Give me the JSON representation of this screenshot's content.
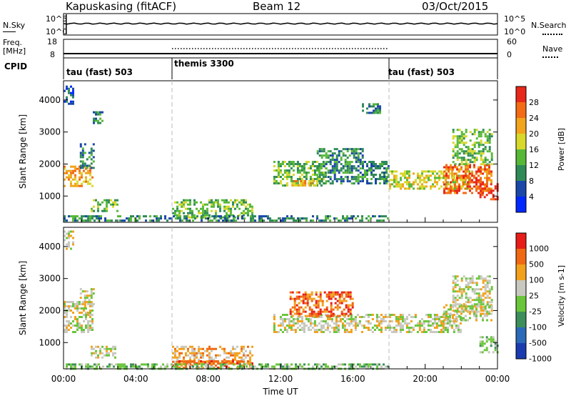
{
  "header": {
    "station": "Kapuskasing (fitACF)",
    "beam": "Beam 12",
    "date": "03/Oct/2015"
  },
  "top_panels": {
    "nsky_label": "N.Sky",
    "nsky_ticks": [
      "10^5",
      "10^0"
    ],
    "nsearch_label": "N.Search",
    "nsearch_ticks": [
      "10^5",
      "10^0"
    ],
    "freq_label_1": "Freq.",
    "freq_label_2": "[MHz]",
    "freq_ticks": [
      "18",
      "8"
    ],
    "nave_label": "Nave",
    "nave_ticks": [
      "60",
      "0"
    ],
    "cpid_label": "CPID",
    "cpid_segments": [
      {
        "label": "tau (fast) 503",
        "start_h": 0,
        "end_h": 6
      },
      {
        "label": "themis 3300",
        "start_h": 6,
        "end_h": 18
      },
      {
        "label": "tau (fast) 503",
        "start_h": 18,
        "end_h": 24
      }
    ]
  },
  "colors": {
    "power_scale": [
      "#0028ff",
      "#1a47a8",
      "#2f8a58",
      "#57b838",
      "#d8d82a",
      "#f1a41c",
      "#f36b14",
      "#e8281a"
    ],
    "velocity_scale": [
      "#1a3cb0",
      "#2a6ab8",
      "#3c8f5a",
      "#6ac53a",
      "#c8c8c0",
      "#f2a11c",
      "#f06812",
      "#e81d19"
    ],
    "ground_scatter": "#c8c8c0"
  },
  "chart_data": [
    {
      "type": "heatmap",
      "panel": "power",
      "ylabel": "Slant Range [km]",
      "ylim": [
        180,
        4600
      ],
      "y_ticks": [
        1000,
        2000,
        3000,
        4000
      ],
      "xlim": [
        0,
        24
      ],
      "colorbar_label": "Power [dB]",
      "colorbar_ticks": [
        "4",
        "8",
        "12",
        "16",
        "20",
        "24",
        "28"
      ],
      "colorbar_range": [
        0,
        32
      ],
      "regions": [
        {
          "t0": 0.0,
          "t1": 1.6,
          "r0": 1300,
          "r1": 1950,
          "level": 5
        },
        {
          "t0": 0.9,
          "t1": 1.7,
          "r0": 1900,
          "r1": 2650,
          "level": 2
        },
        {
          "t0": 0.0,
          "t1": 0.5,
          "r0": 3900,
          "r1": 4450,
          "level": 1
        },
        {
          "t0": 1.5,
          "t1": 2.2,
          "r0": 3300,
          "r1": 3650,
          "level": 2
        },
        {
          "t0": 1.5,
          "t1": 3.0,
          "r0": 500,
          "r1": 900,
          "level": 3
        },
        {
          "t0": 6.0,
          "t1": 10.5,
          "r0": 350,
          "r1": 900,
          "level": 3
        },
        {
          "t0": 0.0,
          "t1": 18.0,
          "r0": 200,
          "r1": 400,
          "level": 2
        },
        {
          "t0": 11.6,
          "t1": 14.5,
          "r0": 1300,
          "r1": 2100,
          "level": 3
        },
        {
          "t0": 12.6,
          "t1": 14.0,
          "r0": 1300,
          "r1": 1500,
          "level": 5
        },
        {
          "t0": 14.0,
          "t1": 16.5,
          "r0": 1400,
          "r1": 2500,
          "level": 2
        },
        {
          "t0": 16.5,
          "t1": 18.0,
          "r0": 1400,
          "r1": 2100,
          "level": 2
        },
        {
          "t0": 18.0,
          "t1": 22.5,
          "r0": 1200,
          "r1": 1800,
          "level": 4
        },
        {
          "t0": 21.0,
          "t1": 23.7,
          "r0": 1100,
          "r1": 2000,
          "level": 6
        },
        {
          "t0": 23.0,
          "t1": 24.0,
          "r0": 900,
          "r1": 1400,
          "level": 7
        },
        {
          "t0": 21.5,
          "t1": 23.7,
          "r0": 2000,
          "r1": 3100,
          "level": 3
        },
        {
          "t0": 16.5,
          "t1": 17.5,
          "r0": 3600,
          "r1": 3900,
          "level": 2
        }
      ]
    },
    {
      "type": "heatmap",
      "panel": "velocity",
      "ylabel": "Slant Range [km]",
      "ylim": [
        180,
        4600
      ],
      "y_ticks": [
        1000,
        2000,
        3000,
        4000
      ],
      "xlim": [
        0,
        24
      ],
      "xlabel": "Time UT",
      "x_ticks": [
        "00:00",
        "04:00",
        "08:00",
        "12:00",
        "16:00",
        "20:00",
        "00:00"
      ],
      "colorbar_label": "Velocity [m s-1]",
      "colorbar_ticks": [
        "1000",
        "500",
        "100",
        "25",
        "-25",
        "-100",
        "-500",
        "-1000"
      ],
      "regions": [
        {
          "t0": 0.0,
          "t1": 1.6,
          "r0": 1300,
          "r1": 2300,
          "level": 4
        },
        {
          "t0": 0.9,
          "t1": 1.7,
          "r0": 2100,
          "r1": 2700,
          "level": 4
        },
        {
          "t0": 0.0,
          "t1": 0.5,
          "r0": 3900,
          "r1": 4500,
          "level": 4
        },
        {
          "t0": 1.5,
          "t1": 3.0,
          "r0": 500,
          "r1": 900,
          "level": 4
        },
        {
          "t0": 6.0,
          "t1": 10.5,
          "r0": 350,
          "r1": 900,
          "level": 5
        },
        {
          "t0": 6.0,
          "t1": 10.5,
          "r0": 200,
          "r1": 450,
          "level": 6
        },
        {
          "t0": 0.0,
          "t1": 18.0,
          "r0": 200,
          "r1": 350,
          "level": 3
        },
        {
          "t0": 11.6,
          "t1": 22.0,
          "r0": 1300,
          "r1": 1900,
          "level": 4
        },
        {
          "t0": 12.5,
          "t1": 16.0,
          "r0": 1800,
          "r1": 2600,
          "level": 6
        },
        {
          "t0": 21.0,
          "t1": 23.7,
          "r0": 1700,
          "r1": 2200,
          "level": 4
        },
        {
          "t0": 21.5,
          "t1": 23.7,
          "r0": 2000,
          "r1": 3100,
          "level": 4
        },
        {
          "t0": 23.0,
          "t1": 24.0,
          "r0": 700,
          "r1": 1200,
          "level": 3
        }
      ]
    }
  ]
}
